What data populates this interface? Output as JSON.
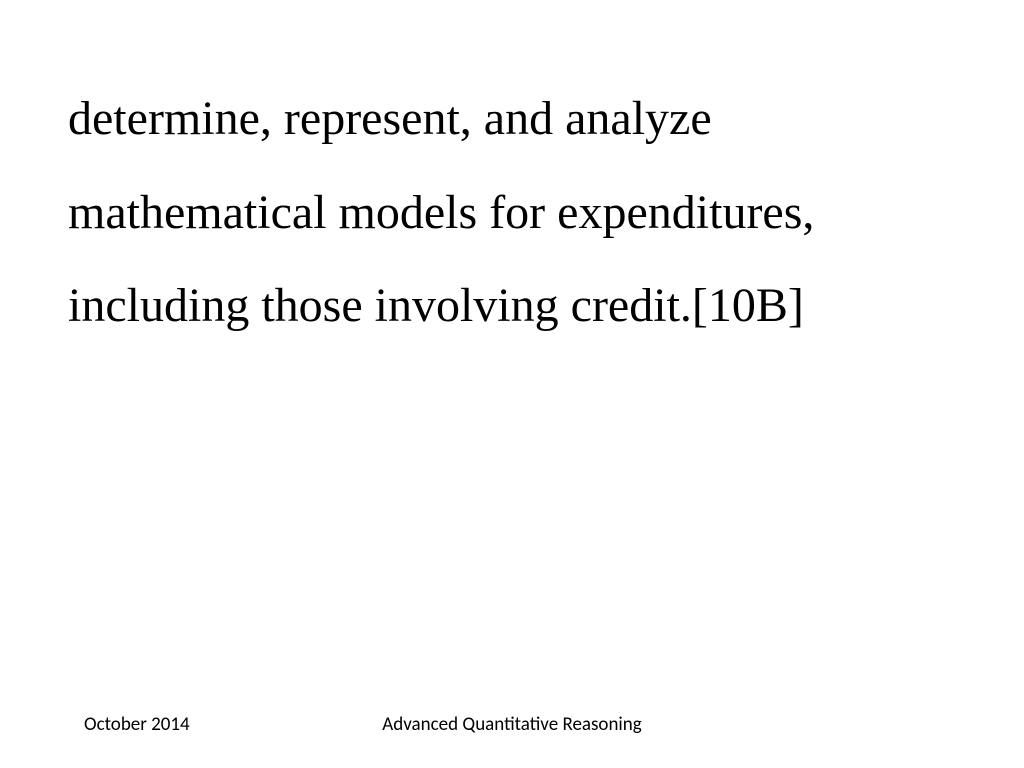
{
  "slide": {
    "body_text": "determine, represent, and analyze mathematical models for expenditures, including those involving credit.[10B]",
    "body_fontsize": 48,
    "body_font": "Comic Sans MS",
    "body_color": "#000000",
    "line_height": 1.95
  },
  "footer": {
    "left": "October 2014",
    "center": "Advanced Quantitative Reasoning",
    "fontsize": 19,
    "font": "Calibri",
    "color": "#000000"
  },
  "background_color": "#ffffff"
}
